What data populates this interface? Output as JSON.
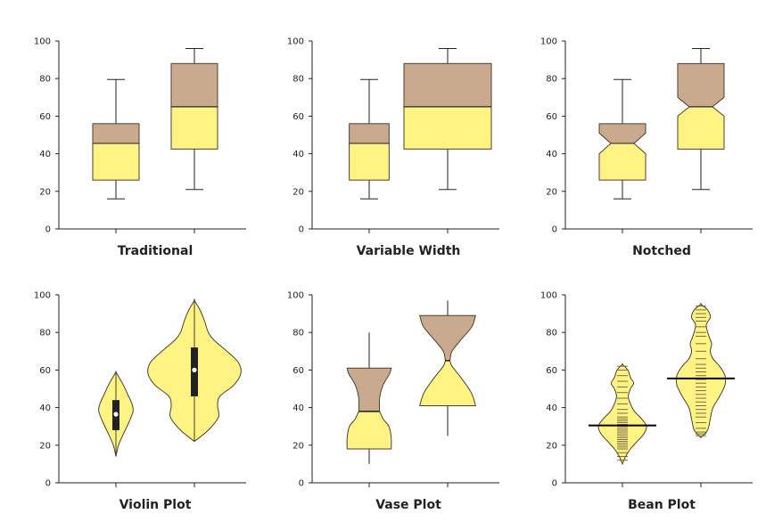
{
  "colors": {
    "lower": "#fff383",
    "upper": "#c9aa8f",
    "outline": "#4a4030",
    "axis": "#222222",
    "bean_line": "#000000",
    "violin_box": "#222222",
    "median_dot": "#ffffff"
  },
  "chart_data": [
    {
      "type": "box",
      "title": "Traditional",
      "ylim": [
        0,
        100
      ],
      "yticks": [
        0,
        20,
        40,
        60,
        80,
        100
      ],
      "variant": "traditional",
      "series": [
        {
          "whisker_low": 16,
          "q1": 26,
          "median": 45.5,
          "q3": 56,
          "whisker_high": 79.5
        },
        {
          "whisker_low": 21,
          "q1": 42.5,
          "median": 65,
          "q3": 88,
          "whisker_high": 96
        }
      ]
    },
    {
      "type": "box",
      "title": "Variable Width",
      "ylim": [
        0,
        100
      ],
      "yticks": [
        0,
        20,
        40,
        60,
        80,
        100
      ],
      "variant": "variable-width",
      "series": [
        {
          "whisker_low": 16,
          "q1": 26,
          "median": 45.5,
          "q3": 56,
          "whisker_high": 79.5,
          "relative_width": 0.35
        },
        {
          "whisker_low": 21,
          "q1": 42.5,
          "median": 65,
          "q3": 88,
          "whisker_high": 96,
          "relative_width": 1.0
        }
      ]
    },
    {
      "type": "box",
      "title": "Notched",
      "ylim": [
        0,
        100
      ],
      "yticks": [
        0,
        20,
        40,
        60,
        80,
        100
      ],
      "variant": "notched",
      "series": [
        {
          "whisker_low": 16,
          "q1": 26,
          "median": 45.5,
          "q3": 56,
          "whisker_high": 79.5,
          "notch_low": 40,
          "notch_high": 51
        },
        {
          "whisker_low": 21,
          "q1": 42.5,
          "median": 65,
          "q3": 88,
          "whisker_high": 96,
          "notch_low": 60,
          "notch_high": 70
        }
      ]
    },
    {
      "type": "violin",
      "title": "Violin Plot",
      "ylim": [
        0,
        100
      ],
      "yticks": [
        0,
        20,
        40,
        60,
        80,
        100
      ],
      "series": [
        {
          "median": 36.5,
          "q1": 28,
          "q3": 44,
          "whisker_low": 15,
          "whisker_high": 59,
          "profile": [
            [
              14,
              0
            ],
            [
              20,
              0.12
            ],
            [
              26,
              0.35
            ],
            [
              32,
              0.6
            ],
            [
              38,
              0.8
            ],
            [
              42,
              0.75
            ],
            [
              47,
              0.55
            ],
            [
              52,
              0.35
            ],
            [
              56,
              0.15
            ],
            [
              59,
              0
            ]
          ]
        },
        {
          "median": 60,
          "q1": 46,
          "q3": 72,
          "whisker_low": 22,
          "whisker_high": 97,
          "profile": [
            [
              22,
              0
            ],
            [
              28,
              0.3
            ],
            [
              35,
              0.52
            ],
            [
              41,
              0.5
            ],
            [
              46,
              0.55
            ],
            [
              52,
              0.85
            ],
            [
              58,
              1.0
            ],
            [
              64,
              0.95
            ],
            [
              70,
              0.7
            ],
            [
              76,
              0.42
            ],
            [
              80,
              0.3
            ],
            [
              86,
              0.22
            ],
            [
              92,
              0.12
            ],
            [
              97,
              0
            ]
          ]
        }
      ]
    },
    {
      "type": "vase",
      "title": "Vase Plot",
      "ylim": [
        0,
        100
      ],
      "yticks": [
        0,
        20,
        40,
        60,
        80,
        100
      ],
      "series": [
        {
          "whisker_low": 10,
          "q1": 18,
          "median": 38,
          "q3": 61,
          "whisker_high": 80,
          "profile": [
            [
              18,
              0.95
            ],
            [
              24,
              0.95
            ],
            [
              30,
              0.85
            ],
            [
              34,
              0.6
            ],
            [
              38,
              0.45
            ],
            [
              45,
              0.45
            ],
            [
              52,
              0.6
            ],
            [
              58,
              0.88
            ],
            [
              61,
              0.95
            ]
          ]
        },
        {
          "whisker_low": 25,
          "q1": 41,
          "median": 65,
          "q3": 89,
          "whisker_high": 97,
          "profile": [
            [
              41,
              0.95
            ],
            [
              48,
              0.8
            ],
            [
              56,
              0.45
            ],
            [
              62,
              0.15
            ],
            [
              65,
              0.08
            ],
            [
              70,
              0.15
            ],
            [
              76,
              0.45
            ],
            [
              83,
              0.82
            ],
            [
              89,
              0.95
            ]
          ]
        }
      ]
    },
    {
      "type": "bean",
      "title": "Bean Plot",
      "ylim": [
        0,
        100
      ],
      "yticks": [
        0,
        20,
        40,
        60,
        80,
        100
      ],
      "series": [
        {
          "mean": 30.5,
          "profile": [
            [
              10,
              0
            ],
            [
              14,
              0.12
            ],
            [
              18,
              0.3
            ],
            [
              22,
              0.55
            ],
            [
              26,
              0.8
            ],
            [
              30,
              0.9
            ],
            [
              34,
              0.72
            ],
            [
              38,
              0.45
            ],
            [
              42,
              0.3
            ],
            [
              46,
              0.22
            ],
            [
              50,
              0.3
            ],
            [
              53,
              0.42
            ],
            [
              56,
              0.3
            ],
            [
              60,
              0.2
            ],
            [
              63,
              0
            ]
          ],
          "points": [
            12,
            14,
            16,
            18,
            19,
            20,
            21,
            22,
            23,
            24,
            25,
            26,
            27,
            28,
            29,
            30,
            31,
            32,
            33,
            34,
            35,
            37,
            39,
            42,
            45,
            48,
            51,
            54,
            57,
            60,
            62
          ]
        },
        {
          "mean": 55.5,
          "profile": [
            [
              24,
              0
            ],
            [
              28,
              0.25
            ],
            [
              34,
              0.35
            ],
            [
              40,
              0.45
            ],
            [
              46,
              0.7
            ],
            [
              52,
              0.9
            ],
            [
              57,
              0.9
            ],
            [
              62,
              0.7
            ],
            [
              66,
              0.45
            ],
            [
              70,
              0.35
            ],
            [
              74,
              0.4
            ],
            [
              78,
              0.3
            ],
            [
              84,
              0.2
            ],
            [
              88,
              0.35
            ],
            [
              92,
              0.25
            ],
            [
              95,
              0
            ]
          ],
          "points": [
            25,
            26,
            27,
            29,
            32,
            35,
            37,
            39,
            41,
            43,
            45,
            47,
            49,
            51,
            53,
            55,
            57,
            59,
            61,
            63,
            66,
            70,
            74,
            78,
            80,
            83,
            86,
            88,
            90,
            92,
            94
          ]
        }
      ]
    }
  ]
}
